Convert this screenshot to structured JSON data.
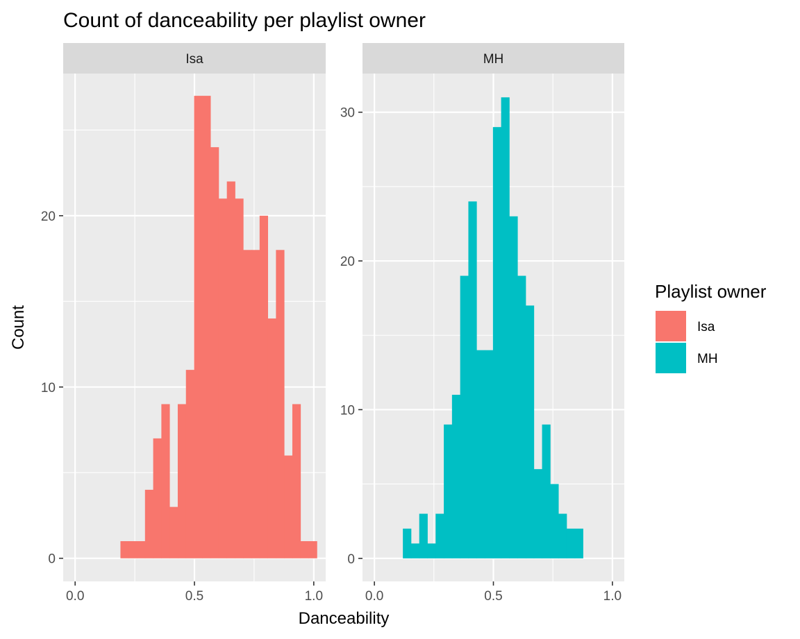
{
  "chart_data": {
    "type": "bar",
    "title": "Count of danceability per playlist owner",
    "xlabel": "Danceability",
    "ylabel": "Count",
    "legend": {
      "title": "Playlist owner",
      "position": "right",
      "entries": [
        {
          "label": "Isa",
          "color": "#F8766D"
        },
        {
          "label": "MH",
          "color": "#00BFC4"
        }
      ]
    },
    "grid": true,
    "panels": [
      {
        "label": "Isa",
        "color": "#F8766D",
        "xlim": [
          -0.05,
          1.05
        ],
        "ylim": [
          -1.35,
          28.3
        ],
        "x_ticks": [
          0.0,
          0.5,
          1.0
        ],
        "x_tick_labels": [
          "0.0",
          "0.5",
          "1.0"
        ],
        "y_ticks": [
          0,
          10,
          20
        ],
        "y_tick_labels": [
          "0",
          "10",
          "20"
        ],
        "bin_width": 0.0343,
        "bin_start": 0.1899,
        "values": [
          1,
          1,
          1,
          4,
          7,
          9,
          3,
          9,
          11,
          27,
          27,
          24,
          21,
          22,
          21,
          18,
          18,
          20,
          14,
          18,
          6,
          9,
          1,
          1
        ]
      },
      {
        "label": "MH",
        "color": "#00BFC4",
        "xlim": [
          -0.05,
          1.05
        ],
        "ylim": [
          -1.55,
          32.6
        ],
        "x_ticks": [
          0.0,
          0.5,
          1.0
        ],
        "x_tick_labels": [
          "0.0",
          "0.5",
          "1.0"
        ],
        "y_ticks": [
          0,
          10,
          20,
          30
        ],
        "y_tick_labels": [
          "0",
          "10",
          "20",
          "30"
        ],
        "bin_width": 0.0344,
        "bin_start": 0.1196,
        "values": [
          2,
          1,
          3,
          1,
          3,
          9,
          11,
          19,
          24,
          14,
          14,
          29,
          31,
          23,
          19,
          17,
          6,
          9,
          5,
          3,
          2,
          2
        ]
      }
    ]
  }
}
